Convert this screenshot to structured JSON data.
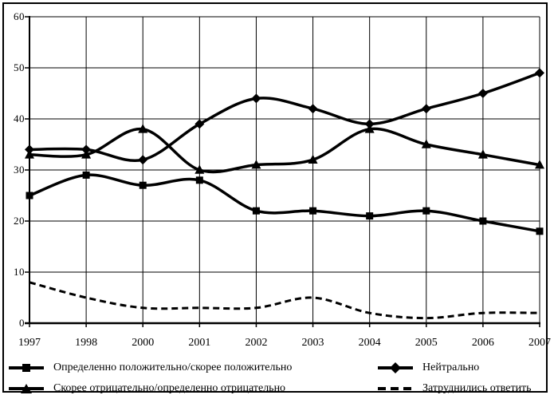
{
  "chart_data": {
    "type": "line",
    "title": "",
    "categories": [
      "1997",
      "1998",
      "2000",
      "2001",
      "2002",
      "2003",
      "2004",
      "2005",
      "2006",
      "2007"
    ],
    "y_axis": {
      "min": 0,
      "max": 60,
      "step": 10,
      "tick_values": [
        0,
        10,
        20,
        30,
        40,
        50,
        60
      ],
      "tick_labels": [
        "0",
        "10",
        "20",
        "30",
        "40",
        "50",
        "60"
      ]
    },
    "series": [
      {
        "id": "positive",
        "name": "Определенно положительно/скорее положительно",
        "marker": "square",
        "line": "solid",
        "values": [
          25,
          29,
          27,
          28,
          22,
          22,
          21,
          22,
          20,
          18
        ]
      },
      {
        "id": "neutral",
        "name": "Нейтрально",
        "marker": "diamond",
        "line": "solid",
        "values": [
          34,
          34,
          32,
          39,
          44,
          42,
          39,
          42,
          45,
          49
        ]
      },
      {
        "id": "negative",
        "name": "Скорее отрицательно/определенно отрицательно",
        "marker": "triangle",
        "line": "solid",
        "values": [
          33,
          33,
          38,
          30,
          31,
          32,
          38,
          35,
          33,
          31
        ]
      },
      {
        "id": "undecided",
        "name": "Затруднились ответить",
        "marker": "none",
        "line": "dashed",
        "values": [
          8,
          5,
          3,
          3,
          3,
          5,
          2,
          1,
          2,
          2
        ]
      }
    ],
    "grid": true,
    "legend_position": "bottom",
    "colors": {
      "foreground": "#000000",
      "background": "#ffffff"
    }
  }
}
